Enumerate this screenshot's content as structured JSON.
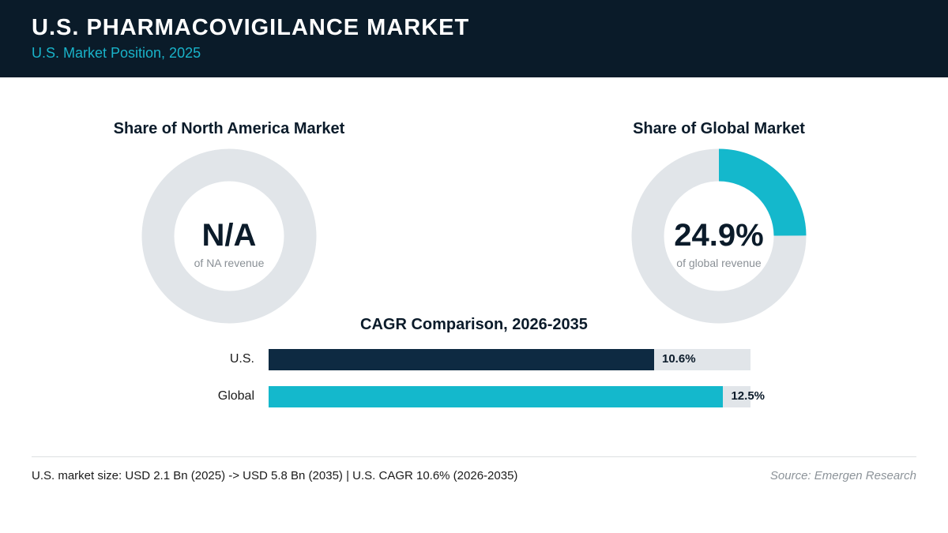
{
  "header": {
    "title": "U.S. PHARMACOVIGILANCE MARKET",
    "subtitle": "U.S. Market Position, 2025"
  },
  "colors": {
    "navy": "#0a1b29",
    "teal": "#14b8cc",
    "bar_navy": "#0e2a42",
    "track": "#e1e5e9"
  },
  "chart_data": [
    {
      "type": "pie",
      "title": "Share of North America Market",
      "center_value": "N/A",
      "center_label": "of NA revenue",
      "share_percent": null
    },
    {
      "type": "pie",
      "title": "Share of Global Market",
      "center_value": "24.9%",
      "center_label": "of global revenue",
      "share_percent": 24.9
    },
    {
      "type": "bar",
      "title": "CAGR Comparison, 2026-2035",
      "categories": [
        "U.S.",
        "Global"
      ],
      "values": [
        10.6,
        12.5
      ],
      "value_labels": [
        "10.6%",
        "12.5%"
      ],
      "xlim": [
        0,
        13.25
      ]
    }
  ],
  "footer": {
    "note": "U.S. market size: USD 2.1 Bn (2025) -> USD 5.8 Bn (2035)  |  U.S. CAGR 10.6% (2026-2035)",
    "source": "Source: Emergen Research"
  }
}
